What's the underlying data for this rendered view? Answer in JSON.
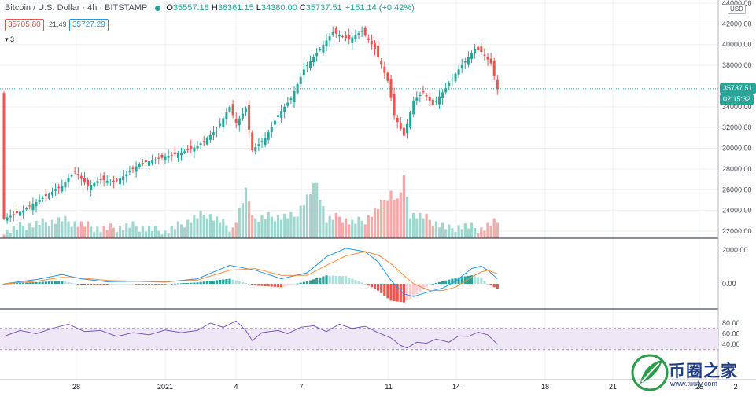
{
  "legend": {
    "title": "Bitcoin / U.S. Dollar · 4h · BITSTAMP",
    "o_label": "O",
    "o_value": "35557.18",
    "h_label": "H",
    "h_value": "36361.15",
    "l_label": "L",
    "l_value": "34380.00",
    "c_label": "C",
    "c_value": "35737.51",
    "change": "+151.14 (+0.42%)",
    "bid": "35705.80",
    "spread": "21.49",
    "ask": "35727.29",
    "indicator_count": "3"
  },
  "price_axis": {
    "currency": "USD",
    "current_price": "35737.51",
    "countdown": "02:15:32"
  },
  "colors": {
    "up": "#26a69a",
    "down": "#ef5350",
    "macd": "#2196f3",
    "signal": "#ff8a3c",
    "rsi": "#7e57c2"
  },
  "chart_data": [
    {
      "type": "candlestick",
      "title": "Bitcoin / U.S. Dollar · 4h · BITSTAMP",
      "interval": "4h",
      "x_ticks": [
        "28",
        "2021",
        "4",
        "7",
        "11",
        "14",
        "18",
        "21",
        "25",
        "2"
      ],
      "y_ticks": [
        22000,
        24000,
        26000,
        28000,
        30000,
        32000,
        34000,
        36000,
        38000,
        40000,
        42000,
        44000
      ],
      "ylim": [
        21000,
        44500
      ],
      "close_path": [
        [
          0,
          23200
        ],
        [
          6,
          24000
        ],
        [
          12,
          25200
        ],
        [
          18,
          26400
        ],
        [
          22,
          27800
        ],
        [
          26,
          26300
        ],
        [
          30,
          27000
        ],
        [
          34,
          26700
        ],
        [
          38,
          27500
        ],
        [
          42,
          28500
        ],
        [
          48,
          29000
        ],
        [
          55,
          29600
        ],
        [
          60,
          30200
        ],
        [
          66,
          31800
        ],
        [
          70,
          34000
        ],
        [
          72,
          32400
        ],
        [
          75,
          33800
        ],
        [
          77,
          29800
        ],
        [
          81,
          31000
        ],
        [
          85,
          33200
        ],
        [
          89,
          34800
        ],
        [
          93,
          37600
        ],
        [
          97,
          39200
        ],
        [
          102,
          41200
        ],
        [
          107,
          40500
        ],
        [
          111,
          41300
        ],
        [
          115,
          39600
        ],
        [
          119,
          36500
        ],
        [
          121,
          33200
        ],
        [
          124,
          31200
        ],
        [
          127,
          34600
        ],
        [
          130,
          35400
        ],
        [
          133,
          34200
        ],
        [
          137,
          35800
        ],
        [
          140,
          37200
        ],
        [
          143,
          38400
        ],
        [
          146,
          39600
        ],
        [
          148,
          39300
        ],
        [
          151,
          38200
        ],
        [
          153,
          35700
        ]
      ],
      "volume_path": [
        [
          0,
          1
        ],
        [
          6,
          2
        ],
        [
          12,
          2.5
        ],
        [
          18,
          3
        ],
        [
          22,
          2.5
        ],
        [
          26,
          2
        ],
        [
          30,
          1.5
        ],
        [
          40,
          2
        ],
        [
          50,
          1
        ],
        [
          60,
          3.5
        ],
        [
          63,
          4
        ],
        [
          71,
          1.5
        ],
        [
          75,
          7.5
        ],
        [
          78,
          3
        ],
        [
          82,
          3.5
        ],
        [
          90,
          3.5
        ],
        [
          97,
          9
        ],
        [
          100,
          3
        ],
        [
          104,
          3.5
        ],
        [
          108,
          2.5
        ],
        [
          112,
          3
        ],
        [
          117,
          5.5
        ],
        [
          120,
          7.5
        ],
        [
          122,
          6
        ],
        [
          124,
          9.5
        ],
        [
          126,
          4
        ],
        [
          130,
          3.5
        ],
        [
          134,
          2.5
        ],
        [
          138,
          1.5
        ],
        [
          142,
          2
        ],
        [
          148,
          1.5
        ],
        [
          152,
          2.5
        ]
      ]
    },
    {
      "type": "line",
      "title": "MACD",
      "y_ticks": [
        0,
        2000
      ],
      "ylim": [
        -1300,
        2150
      ],
      "series": [
        {
          "name": "",
          "points": [
            [
              0,
              0
            ],
            [
              10,
              250
            ],
            [
              18,
              550
            ],
            [
              24,
              300
            ],
            [
              32,
              120
            ],
            [
              40,
              150
            ],
            [
              50,
              100
            ],
            [
              60,
              300
            ],
            [
              70,
              1100
            ],
            [
              78,
              800
            ],
            [
              86,
              300
            ],
            [
              94,
              650
            ],
            [
              100,
              1600
            ],
            [
              106,
              2100
            ],
            [
              112,
              1900
            ],
            [
              116,
              1300
            ],
            [
              120,
              200
            ],
            [
              124,
              -600
            ],
            [
              127,
              -750
            ],
            [
              132,
              -450
            ],
            [
              136,
              -250
            ],
            [
              140,
              150
            ],
            [
              145,
              900
            ],
            [
              148,
              1050
            ],
            [
              150,
              800
            ],
            [
              153,
              300
            ]
          ]
        },
        {
          "name": "",
          "points": [
            [
              0,
              0
            ],
            [
              10,
              150
            ],
            [
              18,
              380
            ],
            [
              24,
              350
            ],
            [
              32,
              200
            ],
            [
              40,
              160
            ],
            [
              50,
              120
            ],
            [
              60,
              220
            ],
            [
              70,
              800
            ],
            [
              78,
              900
            ],
            [
              86,
              500
            ],
            [
              94,
              500
            ],
            [
              100,
              1100
            ],
            [
              106,
              1650
            ],
            [
              112,
              1900
            ],
            [
              116,
              1700
            ],
            [
              120,
              1200
            ],
            [
              124,
              500
            ],
            [
              127,
              0
            ],
            [
              132,
              -400
            ],
            [
              136,
              -400
            ],
            [
              140,
              -200
            ],
            [
              145,
              400
            ],
            [
              148,
              700
            ],
            [
              150,
              800
            ],
            [
              153,
              600
            ]
          ]
        }
      ]
    },
    {
      "type": "line",
      "title": "RSI",
      "y_ticks": [
        40,
        60,
        80
      ],
      "ylim": [
        26,
        94
      ],
      "bands": [
        30,
        70
      ],
      "series": [
        {
          "name": "",
          "points": [
            [
              0,
              55
            ],
            [
              5,
              66
            ],
            [
              10,
              60
            ],
            [
              15,
              70
            ],
            [
              20,
              78
            ],
            [
              25,
              64
            ],
            [
              30,
              66
            ],
            [
              35,
              55
            ],
            [
              40,
              62
            ],
            [
              45,
              58
            ],
            [
              50,
              67
            ],
            [
              55,
              62
            ],
            [
              60,
              66
            ],
            [
              64,
              80
            ],
            [
              68,
              72
            ],
            [
              72,
              84
            ],
            [
              75,
              66
            ],
            [
              77,
              47
            ],
            [
              80,
              62
            ],
            [
              85,
              66
            ],
            [
              88,
              60
            ],
            [
              92,
              72
            ],
            [
              96,
              75
            ],
            [
              100,
              64
            ],
            [
              104,
              78
            ],
            [
              108,
              70
            ],
            [
              112,
              74
            ],
            [
              116,
              62
            ],
            [
              120,
              52
            ],
            [
              123,
              38
            ],
            [
              125,
              33
            ],
            [
              128,
              44
            ],
            [
              131,
              42
            ],
            [
              134,
              50
            ],
            [
              138,
              44
            ],
            [
              141,
              56
            ],
            [
              144,
              55
            ],
            [
              147,
              63
            ],
            [
              150,
              58
            ],
            [
              152,
              46
            ],
            [
              153,
              40
            ]
          ]
        }
      ]
    }
  ],
  "watermark": {
    "name": "币圈之家",
    "url": "www.tuufy.com"
  }
}
